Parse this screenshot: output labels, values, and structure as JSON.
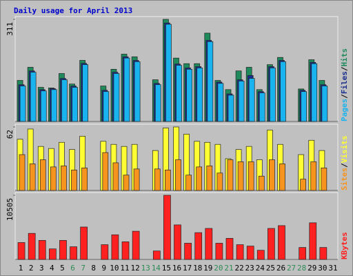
{
  "chart_data": [
    {
      "type": "bar",
      "title": "Daily usage for April 2013",
      "separator": "/",
      "ylim": [
        0,
        311
      ],
      "yticks": [
        311
      ],
      "series": [
        {
          "name": "Hits",
          "color": "#1f8a5c",
          "values": [
            125,
            165,
            104,
            102,
            146,
            114,
            186,
            null,
            108,
            159,
            205,
            197,
            null,
            127,
            311,
            193,
            176,
            176,
            269,
            125,
            97,
            154,
            165,
            97,
            173,
            195,
            null,
            99,
            188,
            125,
            null
          ]
        },
        {
          "name": "Files",
          "color": "#1a2f8f",
          "values": [
            112,
            154,
            97,
            100,
            131,
            108,
            177,
            null,
            95,
            150,
            197,
            186,
            null,
            116,
            300,
            175,
            163,
            167,
            247,
            120,
            84,
            127,
            140,
            91,
            167,
            186,
            null,
            95,
            180,
            112,
            null
          ]
        },
        {
          "name": "Pages",
          "color": "#19b4f0",
          "values": [
            108,
            150,
            93,
            97,
            127,
            104,
            173,
            null,
            91,
            146,
            193,
            182,
            null,
            112,
            296,
            171,
            159,
            163,
            243,
            116,
            80,
            123,
            131,
            87,
            163,
            182,
            null,
            91,
            176,
            108,
            null
          ]
        }
      ]
    },
    {
      "type": "bar",
      "separator": "/",
      "ylim": [
        0,
        62
      ],
      "yticks": [
        62
      ],
      "series": [
        {
          "name": "Visits",
          "color": "#ffff33",
          "values": [
            50,
            60,
            43,
            41,
            47,
            40,
            53,
            null,
            48,
            45,
            43,
            45,
            null,
            39,
            61,
            62,
            55,
            48,
            47,
            45,
            31,
            40,
            43,
            30,
            59,
            45,
            null,
            35,
            49,
            39,
            null
          ]
        },
        {
          "name": "Sites",
          "color": "#f7941d",
          "values": [
            35,
            26,
            30,
            23,
            24,
            20,
            22,
            null,
            37,
            27,
            15,
            21,
            null,
            21,
            20,
            30,
            15,
            23,
            24,
            17,
            30,
            28,
            28,
            14,
            30,
            26,
            null,
            11,
            28,
            22,
            null
          ]
        }
      ]
    },
    {
      "type": "bar",
      "ylim": [
        0,
        10505
      ],
      "yticks": [
        10505
      ],
      "categories": [
        "1",
        "2",
        "3",
        "4",
        "5",
        "6",
        "7",
        "8",
        "9",
        "10",
        "11",
        "12",
        "13",
        "14",
        "15",
        "16",
        "17",
        "18",
        "19",
        "20",
        "21",
        "22",
        "23",
        "24",
        "25",
        "26",
        "27",
        "28",
        "29",
        "30",
        "31"
      ],
      "weekend_indices": [
        5,
        6,
        12,
        13,
        19,
        20,
        26,
        27
      ],
      "weekend_color": "#2e8b57",
      "series": [
        {
          "name": "KBytes",
          "color": "#ff2020",
          "values": [
            2770,
            4270,
            3120,
            1730,
            3120,
            2080,
            5310,
            null,
            2420,
            4040,
            2890,
            4620,
            null,
            1390,
            10505,
            5660,
            2660,
            4390,
            5080,
            2660,
            3460,
            2420,
            2190,
            1500,
            5080,
            5540,
            null,
            1960,
            6000,
            1960,
            null
          ]
        }
      ]
    }
  ]
}
